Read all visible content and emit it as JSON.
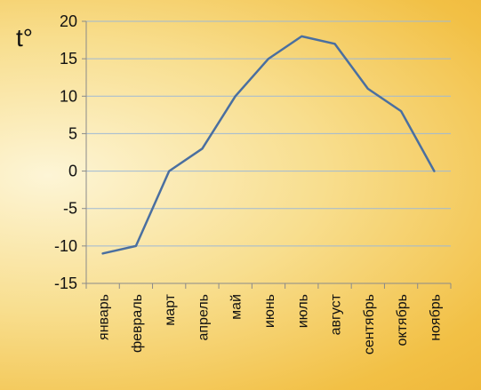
{
  "chart_data": {
    "type": "line",
    "title": "",
    "xlabel": "",
    "ylabel": "t°",
    "ylim": [
      -15,
      20
    ],
    "ytick_step": 5,
    "grid": true,
    "legend": "none",
    "categories": [
      "январь",
      "февраль",
      "март",
      "апрель",
      "май",
      "июнь",
      "июль",
      "август",
      "сентябрь",
      "октябрь",
      "ноябрь"
    ],
    "series": [
      {
        "values": [
          -11,
          -10,
          0,
          3,
          10,
          15,
          18,
          17,
          11,
          8,
          0
        ]
      }
    ],
    "colors": {
      "line": "#4a6fa0",
      "grid": "#9fb9d4",
      "axis": "#8a8a8a"
    }
  }
}
